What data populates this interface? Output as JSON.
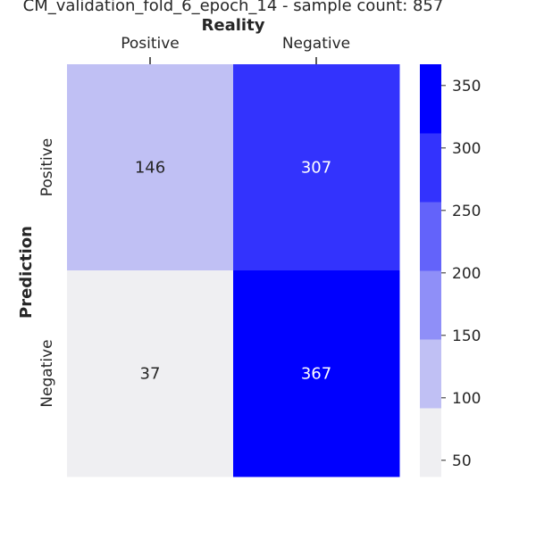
{
  "chart_data": {
    "type": "heatmap",
    "title": "CM_validation_fold_6_epoch_14 - sample count: 857",
    "xlabel": "Reality",
    "ylabel": "Prediction",
    "x_categories": [
      "Positive",
      "Negative"
    ],
    "y_categories": [
      "Positive",
      "Negative"
    ],
    "values": [
      [
        146,
        307
      ],
      [
        37,
        367
      ]
    ],
    "colorbar": {
      "range": [
        37,
        367
      ],
      "ticks": [
        50,
        100,
        150,
        200,
        250,
        300,
        350
      ],
      "bins": [
        {
          "from": 37,
          "to": 92,
          "color": "#efeff2"
        },
        {
          "from": 92,
          "to": 147,
          "color": "#c0c0f4"
        },
        {
          "from": 147,
          "to": 202,
          "color": "#8f8ff8"
        },
        {
          "from": 202,
          "to": 257,
          "color": "#6363fa"
        },
        {
          "from": 257,
          "to": 312,
          "color": "#3333fd"
        },
        {
          "from": 312,
          "to": 367,
          "color": "#0000ff"
        }
      ]
    },
    "text_colors": {
      "dark": "#262626",
      "light": "#ffffff"
    }
  }
}
